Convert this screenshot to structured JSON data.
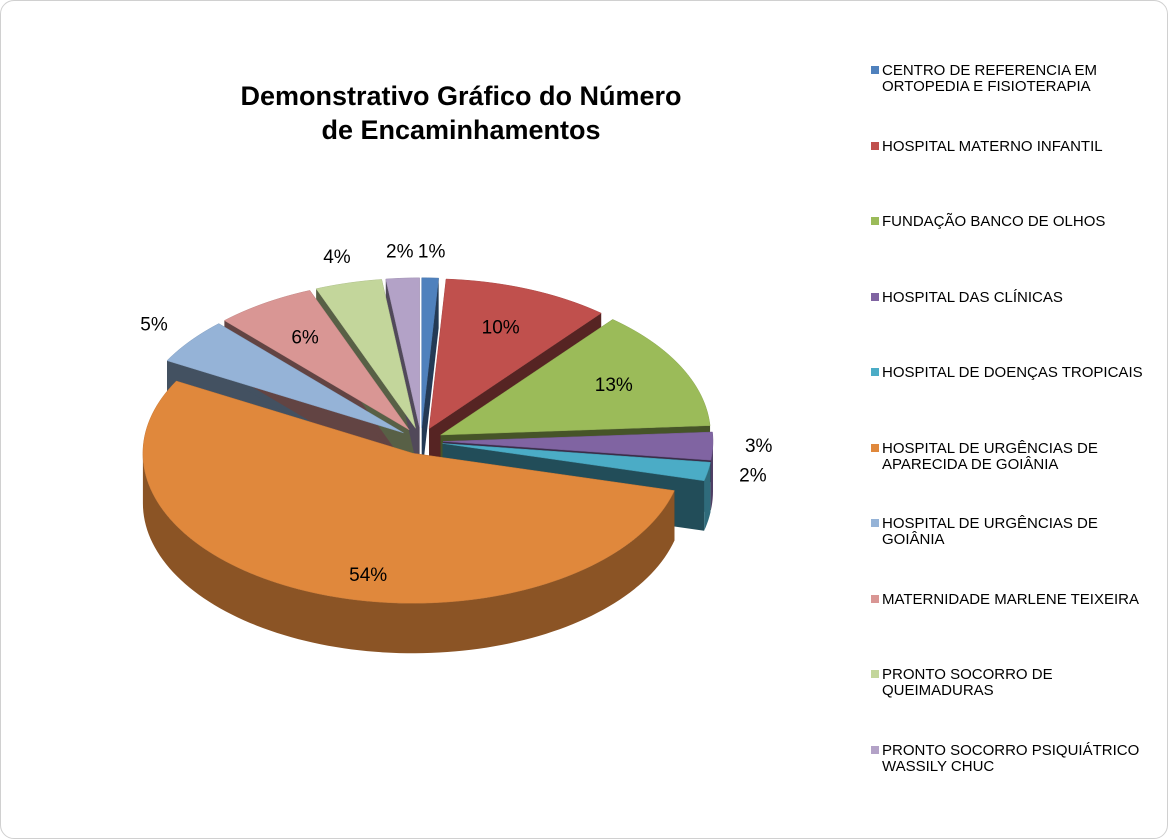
{
  "chart_data": {
    "type": "pie",
    "title": "Demonstrativo Gráfico do Número de Encaminhamentos",
    "categories": [
      "CENTRO DE REFERENCIA EM ORTOPEDIA E FISIOTERAPIA",
      "HOSPITAL MATERNO INFANTIL",
      "FUNDAÇÃO BANCO DE OLHOS",
      "HOSPITAL DAS CLÍNICAS",
      "HOSPITAL DE DOENÇAS TROPICAIS",
      "HOSPITAL DE URGÊNCIAS DE APARECIDA DE GOIÂNIA",
      "HOSPITAL DE URGÊNCIAS DE GOIÂNIA",
      "MATERNIDADE MARLENE TEIXEIRA",
      "PRONTO SOCORRO DE QUEIMADURAS",
      "PRONTO SOCORRO PSIQUIÁTRICO WASSILY CHUC"
    ],
    "values": [
      1,
      10,
      13,
      3,
      2,
      54,
      5,
      6,
      4,
      2
    ],
    "value_labels": [
      "1%",
      "10%",
      "13%",
      "3%",
      "2%",
      "54%",
      "5%",
      "6%",
      "4%",
      "2%"
    ],
    "colors": [
      "#4f81bd",
      "#c0504d",
      "#9bbb59",
      "#8064a2",
      "#4bacc6",
      "#e0883c",
      "#95b3d7",
      "#d99694",
      "#c3d69b",
      "#b3a2c7"
    ],
    "legend": "right"
  }
}
